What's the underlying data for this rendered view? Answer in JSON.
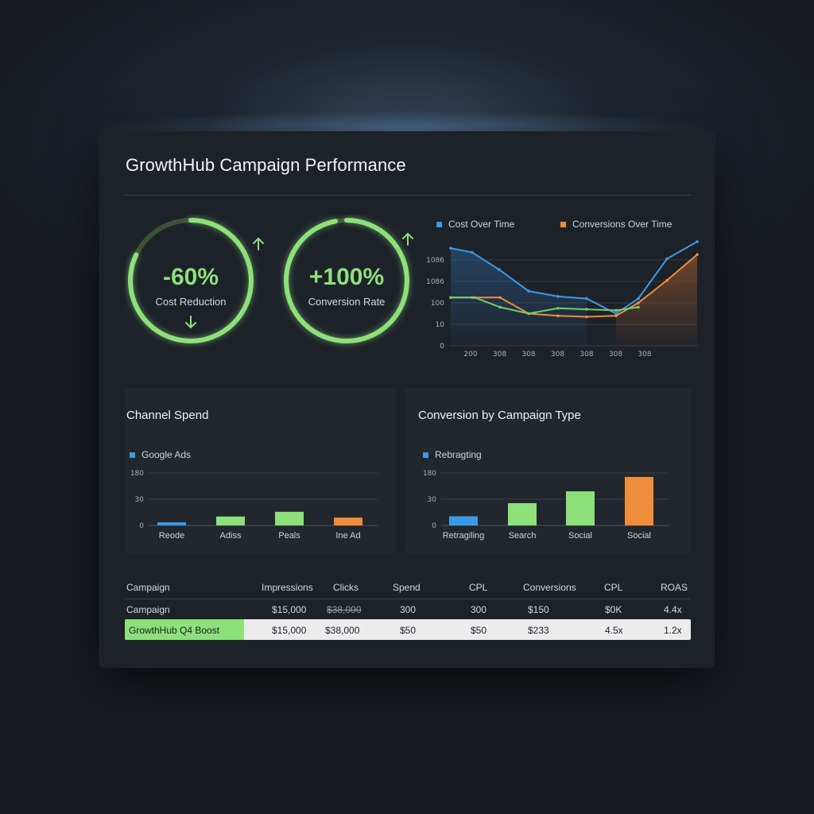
{
  "header": {
    "title": "GrowthHub Campaign Performance"
  },
  "kpis": [
    {
      "value": "-60%",
      "label": "Cost Reduction",
      "progress": 0.82,
      "color": "#8de07a",
      "arrow": "arrow-up-icon",
      "inner_arrow": "arrow-down-icon"
    },
    {
      "value": "+100%",
      "label": "Conversion Rate",
      "progress": 0.97,
      "color": "#8de07a",
      "arrow": "arrow-up-icon"
    }
  ],
  "chart_data": [
    {
      "type": "line",
      "title": "",
      "legend": [
        {
          "name": "Cost Over Time",
          "color": "#3b9ae6"
        },
        {
          "name": "Conversions Over Time",
          "color": "#f08d3c"
        }
      ],
      "y_ticks": [
        "1086",
        "1086",
        "100",
        "10",
        "0"
      ],
      "x_ticks": [
        "200",
        "308",
        "308",
        "308",
        "308",
        "308",
        "308"
      ],
      "series": [
        {
          "name": "Cost Over Time",
          "color": "#3b9ae6",
          "values": [
            0.91,
            0.87,
            0.71,
            0.51,
            0.46,
            0.44,
            0.3,
            0.44,
            0.81,
            0.97
          ]
        },
        {
          "name": "Conversions Over Time",
          "color": "#f08d3c",
          "values": [
            0.45,
            0.45,
            0.45,
            0.3,
            0.28,
            0.27,
            0.28,
            0.4,
            0.61,
            0.85
          ]
        },
        {
          "name": "",
          "color": "#6fcf6a",
          "values": [
            0.45,
            0.45,
            0.36,
            0.3,
            0.35,
            0.34,
            0.33,
            0.36
          ]
        }
      ]
    },
    {
      "type": "bar",
      "title": "Channel Spend",
      "legend": [
        {
          "name": "Google Ads",
          "color": "#3b9ae6"
        }
      ],
      "y_ticks": [
        "180",
        "30",
        "0"
      ],
      "categories": [
        "Reode",
        "Adiss",
        "Peals",
        "Ine Ad"
      ],
      "values": [
        6,
        17,
        26,
        15
      ],
      "colors": [
        "#3b9ae6",
        "#8de07a",
        "#8de07a",
        "#f08d3c"
      ],
      "ylim": [
        0,
        100
      ]
    },
    {
      "type": "bar",
      "title": "Conversion by Campaign Type",
      "legend": [
        {
          "name": "Rebragting",
          "color": "#3b9ae6"
        }
      ],
      "y_ticks": [
        "180",
        "30",
        "0"
      ],
      "categories": [
        "Retragiling",
        "Search",
        "Social",
        "Social"
      ],
      "values": [
        21,
        51,
        78,
        111
      ],
      "colors": [
        "#3b9ae6",
        "#8de07a",
        "#8de07a",
        "#f08d3c"
      ],
      "ylim": [
        0,
        120
      ]
    }
  ],
  "table": {
    "headers": [
      "Campaign",
      "Impressions",
      "Clicks",
      "Spend",
      "CPL",
      "Conversions",
      "CPL",
      "ROAS"
    ],
    "rows": [
      [
        "Campaign",
        "$15,000",
        "$38,000",
        "300",
        "300",
        "$150",
        "$0K",
        "4.4x"
      ],
      [
        "GrowthHub Q4 Boost",
        "$15,000",
        "$38,000",
        "$50",
        "$50",
        "$233",
        "4.5x",
        "1.2x"
      ]
    ]
  }
}
